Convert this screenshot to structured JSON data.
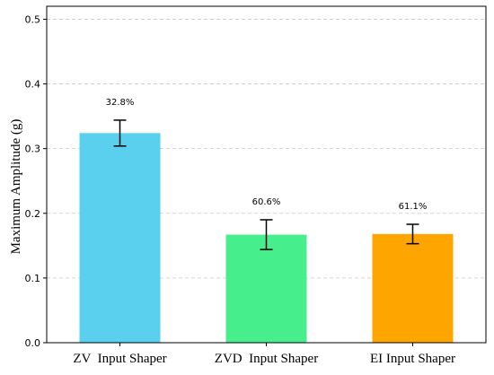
{
  "chart_data": {
    "type": "bar",
    "categories": [
      "ZV  Input Shaper",
      "ZVD  Input Shaper",
      "EI Input Shaper"
    ],
    "values": [
      0.324,
      0.167,
      0.168
    ],
    "errors": [
      0.02,
      0.023,
      0.015
    ],
    "data_labels": [
      "32.8%",
      "60.6%",
      "61.1%"
    ],
    "colors": [
      "#5bcfee",
      "#46ef8b",
      "#ffa500"
    ],
    "ylabel": "Maximum Amplitude (g)",
    "xlabel": "",
    "ylim": [
      0,
      0.52
    ],
    "yticks": [
      "0.0",
      "0.1",
      "0.2",
      "0.3",
      "0.4",
      "0.5"
    ],
    "ytick_values": [
      0.0,
      0.1,
      0.2,
      0.3,
      0.4,
      0.5
    ],
    "grid": "horizontal-dashed",
    "legend": "none"
  }
}
